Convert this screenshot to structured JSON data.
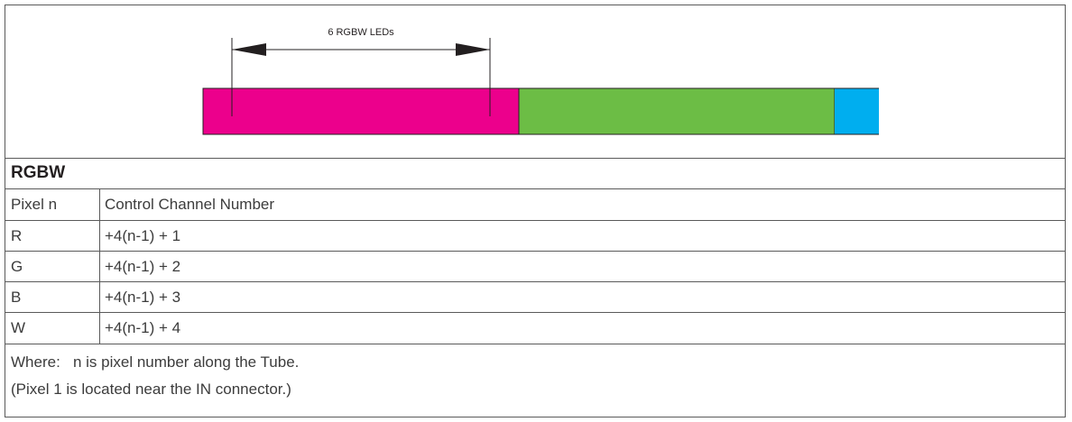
{
  "diagram": {
    "dimension_label": "6 RGBW LEDs",
    "colors": {
      "magenta": "#ec008c",
      "green": "#6cbd45",
      "cyan": "#00aeef"
    }
  },
  "table": {
    "title": "RGBW",
    "headers": {
      "pixel": "Pixel n",
      "channel": "Control Channel Number"
    },
    "rows": [
      {
        "pixel": "R",
        "formula": "+4(n-1) + 1"
      },
      {
        "pixel": "G",
        "formula": "+4(n-1) + 2"
      },
      {
        "pixel": "B",
        "formula": "+4(n-1) + 3"
      },
      {
        "pixel": "W",
        "formula": "+4(n-1) + 4"
      }
    ]
  },
  "notes": {
    "line1": "Where:   n is pixel number along the Tube.",
    "line2": "(Pixel 1 is located near the IN connector.)"
  }
}
